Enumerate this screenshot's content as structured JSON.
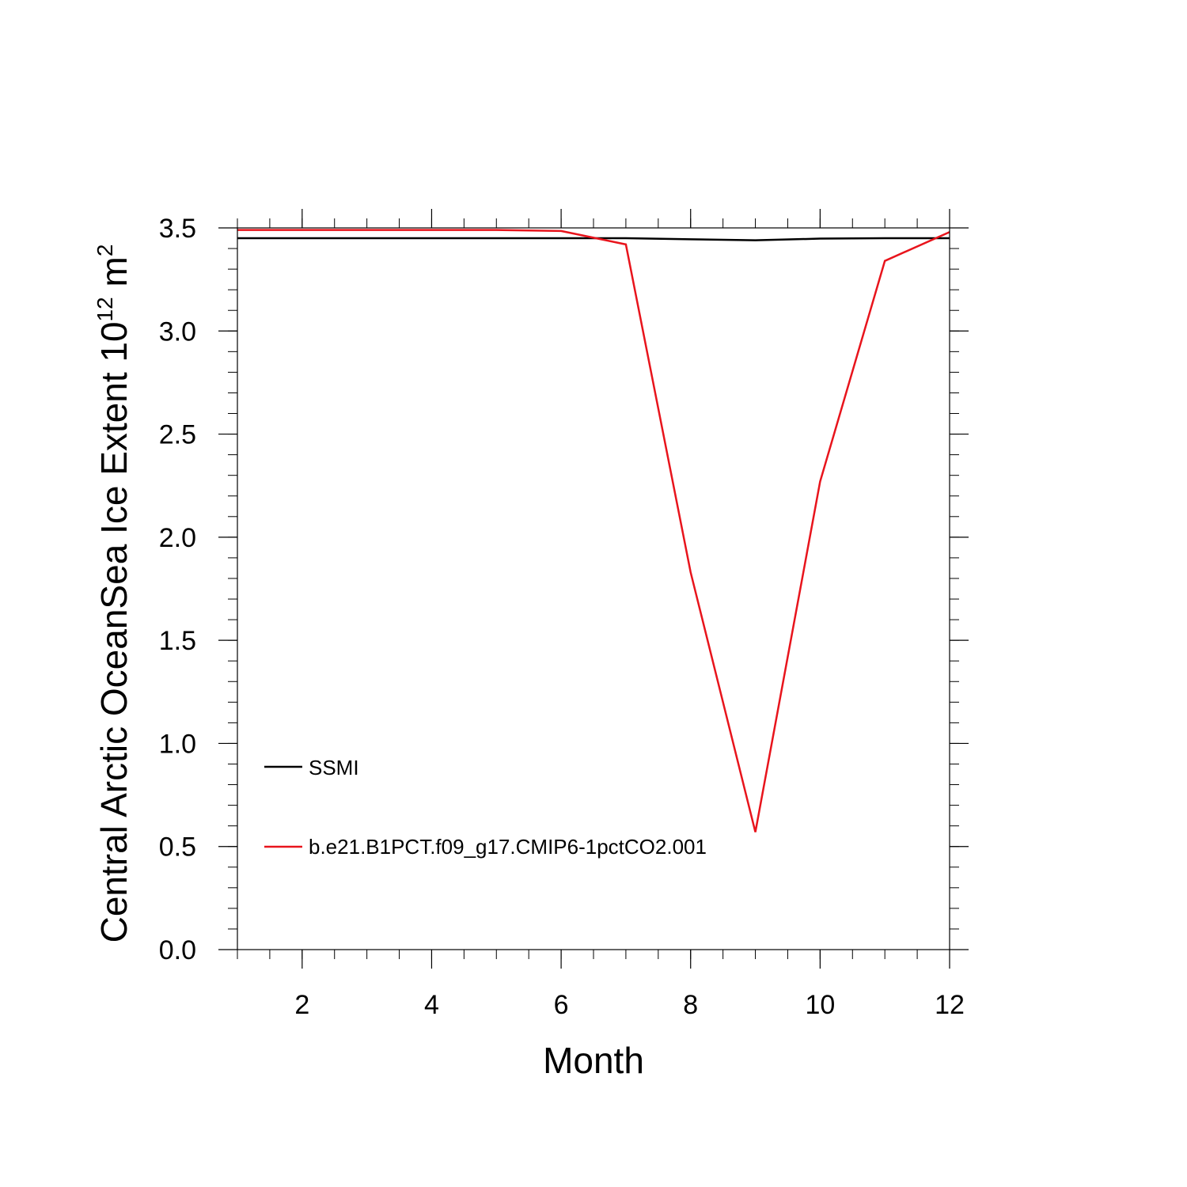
{
  "chart_data": {
    "type": "line",
    "x": [
      1,
      2,
      3,
      4,
      5,
      6,
      7,
      8,
      9,
      10,
      11,
      12
    ],
    "series": [
      {
        "name": "SSMI",
        "color": "#000000",
        "values": [
          3.45,
          3.45,
          3.45,
          3.45,
          3.45,
          3.45,
          3.45,
          3.445,
          3.44,
          3.448,
          3.45,
          3.45
        ]
      },
      {
        "name": "b.e21.B1PCT.f09_g17.CMIP6-1pctCO2.001",
        "color": "#e8141c",
        "values": [
          3.49,
          3.49,
          3.49,
          3.49,
          3.49,
          3.485,
          3.42,
          1.83,
          0.57,
          2.27,
          3.34,
          3.48
        ]
      }
    ],
    "xlim": [
      1,
      12
    ],
    "ylim": [
      0,
      3.5
    ],
    "xticks": [
      2,
      4,
      6,
      8,
      10,
      12
    ],
    "xtick_labels": [
      "2",
      "4",
      "6",
      "8",
      "10",
      "12"
    ],
    "yticks": [
      0,
      0.5,
      1,
      1.5,
      2,
      2.5,
      3,
      3.5
    ],
    "ytick_labels": [
      "0.0",
      "0.5",
      "1.0",
      "1.5",
      "2.0",
      "2.5",
      "3.0",
      "3.5"
    ],
    "xlabel": "Month",
    "ylabel": "Central Arctic OceanSea Ice Extent 10",
    "ylabel_sup": "12",
    "ylabel_unit": " m",
    "ylabel_unit_sup": "2",
    "legend_placement": "lower-left inside",
    "grid": false
  }
}
